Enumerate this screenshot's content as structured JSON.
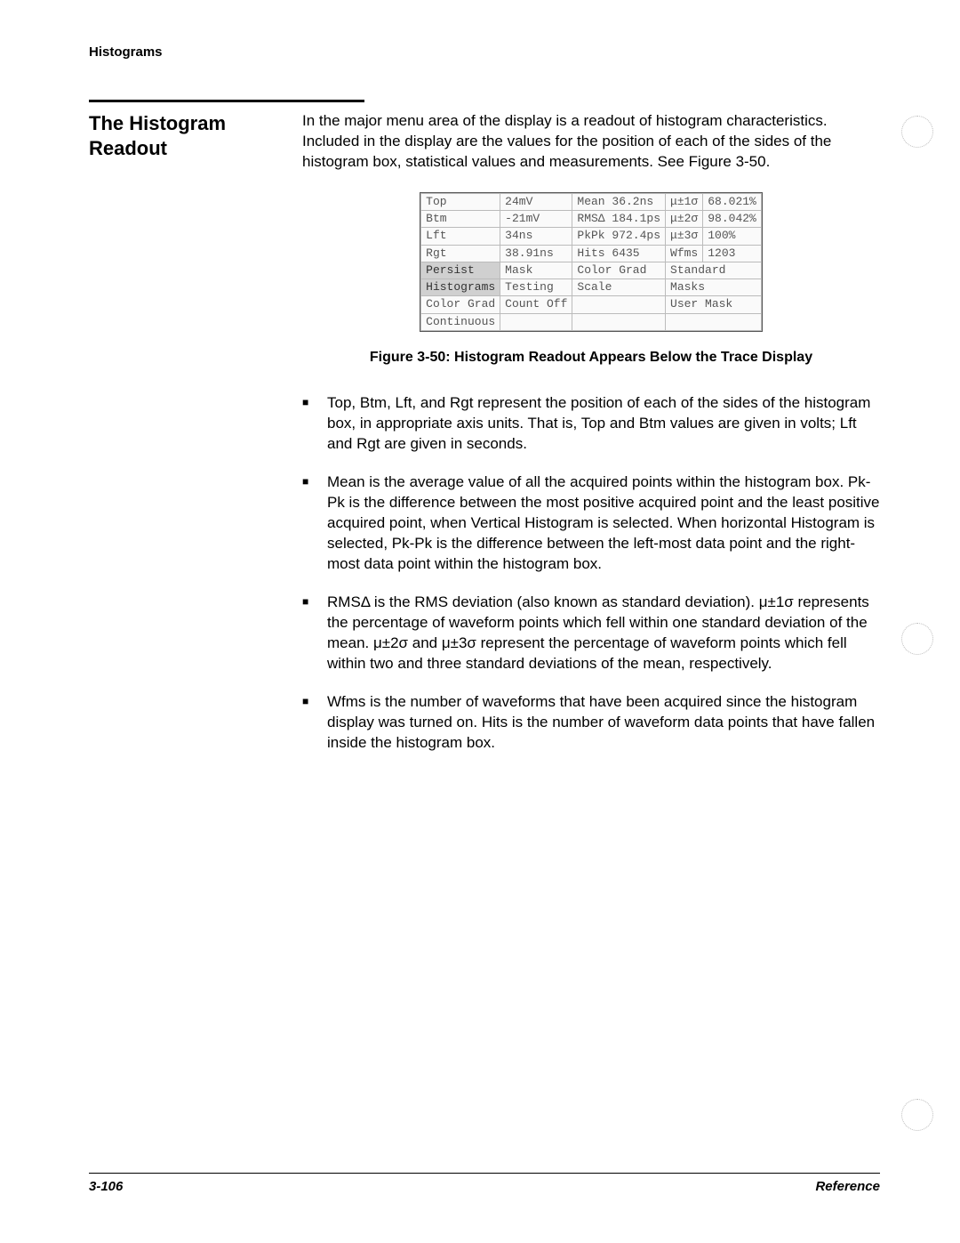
{
  "running_head": "Histograms",
  "section_title": "The Histogram Readout",
  "intro_paragraph": "In the major menu area of the display is a readout of histogram characteristics. Included in the display are the values for the position of each of the sides of the histogram box, statistical values and measurements. See Figure 3-50.",
  "readout": {
    "row1": {
      "c1": "Top",
      "c2": "24mV",
      "c3": "Mean 36.2ns",
      "c4": "μ±1σ",
      "c5": "68.021%"
    },
    "row2": {
      "c1": "Btm",
      "c2": "-21mV",
      "c3": "RMSΔ 184.1ps",
      "c4": "μ±2σ",
      "c5": "98.042%"
    },
    "row3": {
      "c1": "Lft",
      "c2": "34ns",
      "c3": "PkPk 972.4ps",
      "c4": "μ±3σ",
      "c5": "100%"
    },
    "row4": {
      "c1": "Rgt",
      "c2": "38.91ns",
      "c3": "Hits   6435",
      "c4": "Wfms",
      "c5": "1203"
    },
    "row5": {
      "c1": "Persist",
      "c2": "Mask",
      "c3": "Color Grad",
      "c4": "Standard"
    },
    "row6": {
      "c1": "Histograms",
      "c2": "Testing",
      "c3": "Scale",
      "c4": "Masks"
    },
    "row7": {
      "c1": "Color Grad",
      "c2": "Count Off",
      "c3": "",
      "c4": "User Mask"
    },
    "row8": {
      "c1": "Continuous",
      "c2": "",
      "c3": "",
      "c4": ""
    }
  },
  "figure_caption": "Figure 3-50:  Histogram Readout Appears Below the Trace Display",
  "bullets": {
    "b1": "Top, Btm, Lft, and Rgt represent the position of each of the sides of the histogram box, in appropriate axis units. That is, Top and Btm values are given in volts; Lft and Rgt are given in seconds.",
    "b2": "Mean is the average value of all the acquired points within the histogram box. Pk-Pk is the difference between the most positive acquired point and the least positive acquired point, when Vertical Histogram is selected. When horizontal Histogram is selected, Pk-Pk is the difference between the left-most data point and the right-most data point within the histogram box.",
    "b3": "RMSΔ is the RMS deviation (also known as standard deviation). μ±1σ represents the percentage of waveform points which fell within one standard deviation of the mean. μ±2σ and μ±3σ represent the percentage of waveform points which fell within two and three standard deviations of the mean, respectively.",
    "b4": "Wfms is the number of waveforms that have been acquired since the histogram display was turned on. Hits is the number of waveform data points that have fallen inside the histogram box."
  },
  "footer": {
    "page_number": "3-106",
    "section": "Reference"
  }
}
